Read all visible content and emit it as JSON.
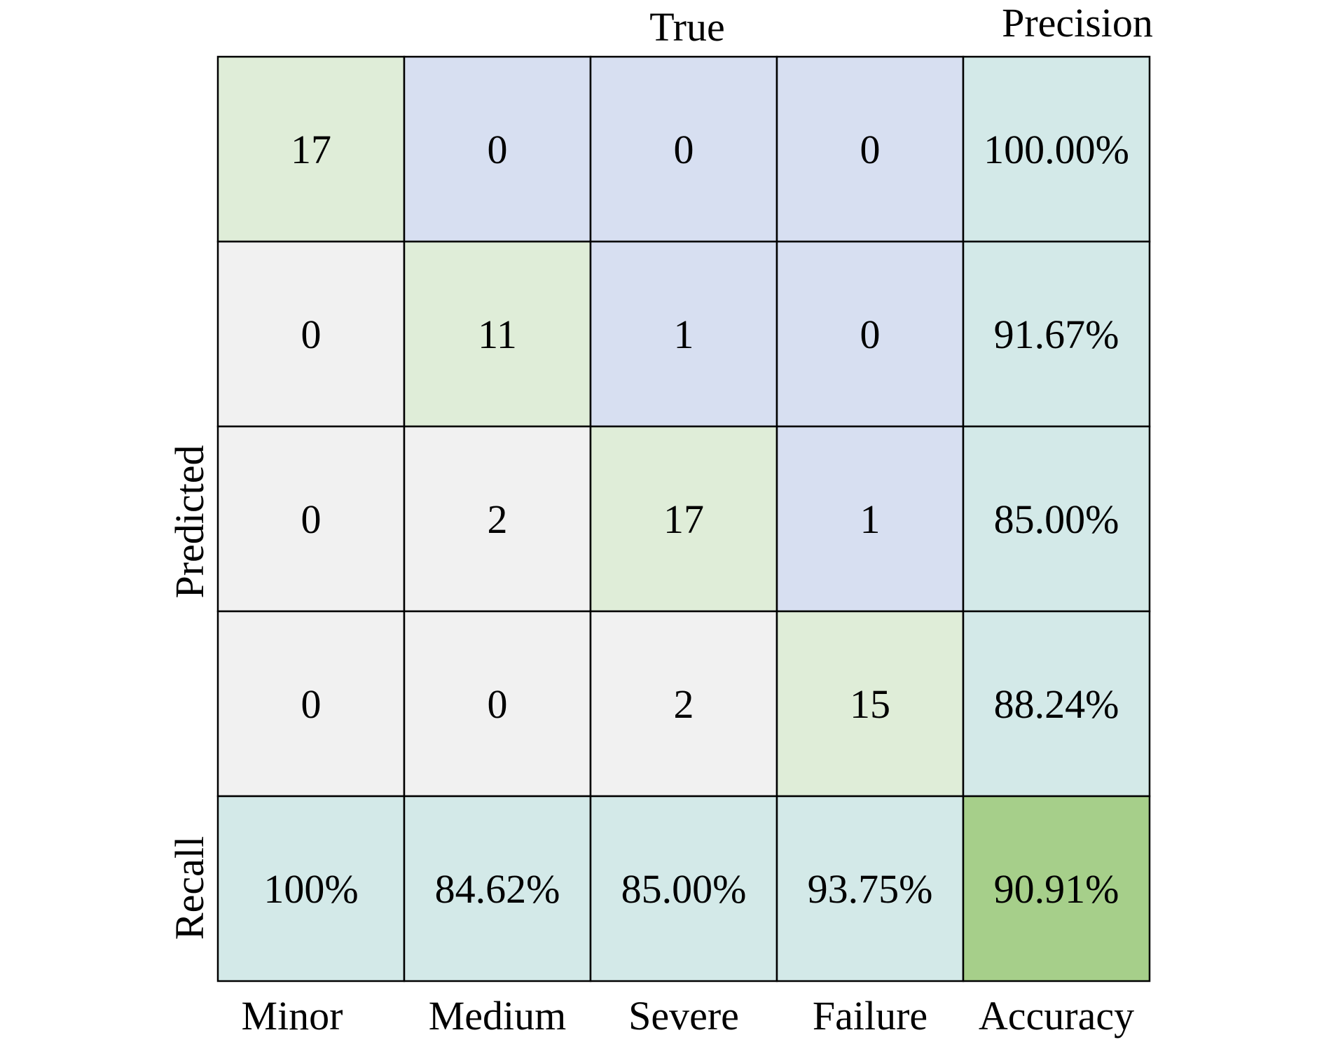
{
  "chart_data": {
    "type": "heatmap",
    "subtype": "confusion-matrix",
    "xlabel": "True",
    "ylabel": "Predicted",
    "precision_label": "Precision",
    "recall_label": "Recall",
    "accuracy_label": "Accuracy",
    "categories": [
      "Minor",
      "Medium",
      "Severe",
      "Failure"
    ],
    "matrix": [
      [
        17,
        0,
        0,
        0
      ],
      [
        0,
        11,
        1,
        0
      ],
      [
        0,
        2,
        17,
        1
      ],
      [
        0,
        0,
        2,
        15
      ]
    ],
    "precision": [
      "100.00%",
      "91.67%",
      "85.00%",
      "88.24%"
    ],
    "recall": [
      "100%",
      "84.62%",
      "85.00%",
      "93.75%"
    ],
    "accuracy": "90.91%",
    "colors": {
      "diagonal": "#dfedd8",
      "upper": "#d7dff1",
      "lower": "#f1f1f1",
      "metric": "#d3e9e8",
      "accuracy": "#a6cf8a",
      "border": "#000000"
    }
  }
}
